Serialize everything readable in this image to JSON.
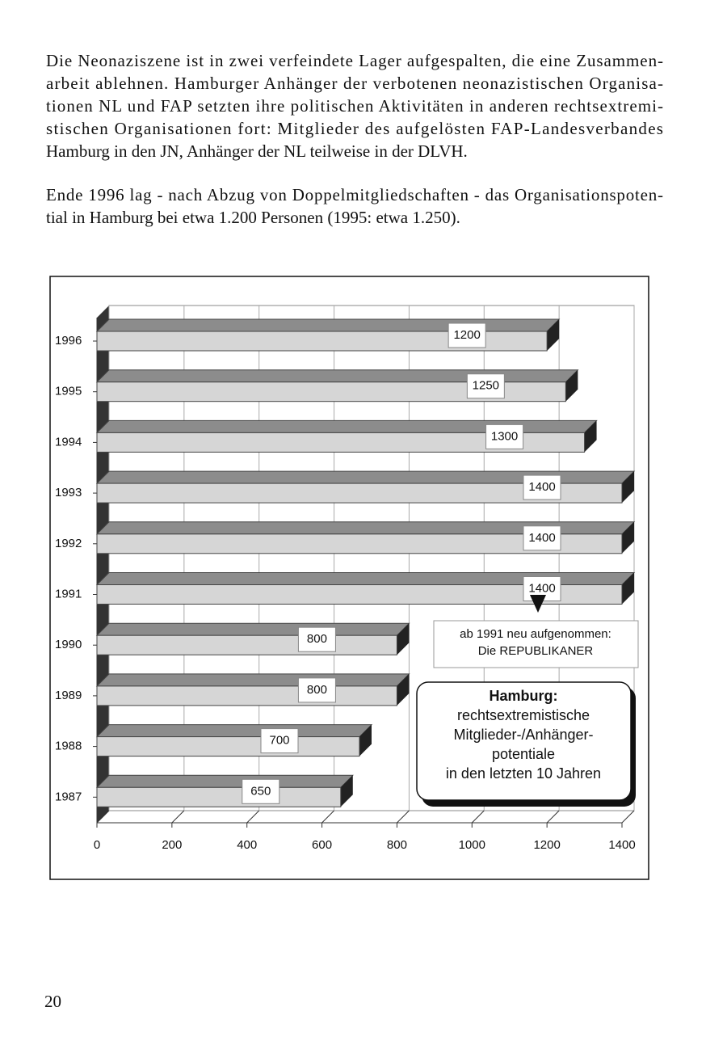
{
  "paragraphs": [
    [
      "Die Neonaziszene ist in zwei verfeindete Lager aufgespalten, die eine Zusammen-",
      "arbeit ablehnen. Hamburger Anhänger der verbotenen neonazistischen Organisa-",
      "tionen NL und FAP setzten ihre politischen Aktivitäten in anderen rechtsextremi-",
      "stischen Organisationen fort: Mitglieder des aufgelösten FAP-Landesverbandes",
      "Hamburg in den JN, Anhänger der NL teilweise in der DLVH."
    ],
    [
      "Ende 1996 lag - nach Abzug von Doppelmitgliedschaften - das Organisationspoten-",
      "tial in Hamburg bei etwa 1.200 Personen (1995: etwa 1.250)."
    ]
  ],
  "chart_data": {
    "type": "bar",
    "orientation": "horizontal",
    "categories": [
      "1996",
      "1995",
      "1994",
      "1993",
      "1992",
      "1991",
      "1990",
      "1989",
      "1988",
      "1987"
    ],
    "values": [
      1200,
      1250,
      1300,
      1400,
      1400,
      1400,
      800,
      800,
      700,
      650
    ],
    "color": "#d6d6d6",
    "xlim": [
      0,
      1400
    ],
    "xticks": [
      0,
      200,
      400,
      600,
      800,
      1000,
      1200,
      1400
    ],
    "grid": true,
    "annotation": [
      "ab 1991 neu aufgenommen:",
      "Die REPUBLIKANER"
    ],
    "title_box": [
      "Hamburg:",
      "rechtsextremistische",
      "Mitglieder-/Anhänger-",
      "potentiale",
      "in den letzten 10 Jahren"
    ]
  },
  "page_number": "20"
}
